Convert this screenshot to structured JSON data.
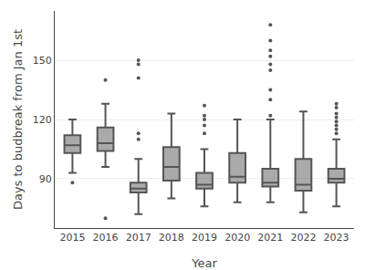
{
  "chart_data": {
    "type": "box",
    "xlabel": "Year",
    "ylabel": "Days to budbreak from Jan 1st",
    "categories": [
      "2015",
      "2016",
      "2017",
      "2018",
      "2019",
      "2020",
      "2021",
      "2022",
      "2023"
    ],
    "boxes": [
      {
        "whislo": 93,
        "q1": 103,
        "med": 107,
        "q3": 112,
        "whishi": 120,
        "fliers": [
          88
        ]
      },
      {
        "whislo": 96,
        "q1": 104,
        "med": 108,
        "q3": 116,
        "whishi": 128,
        "fliers": [
          140,
          70
        ]
      },
      {
        "whislo": 72,
        "q1": 83,
        "med": 85,
        "q3": 88,
        "whishi": 100,
        "fliers": [
          110,
          113,
          148,
          150,
          141
        ]
      },
      {
        "whislo": 80,
        "q1": 89,
        "med": 96,
        "q3": 106,
        "whishi": 123,
        "fliers": []
      },
      {
        "whislo": 76,
        "q1": 85,
        "med": 87,
        "q3": 93,
        "whishi": 105,
        "fliers": [
          113,
          117,
          120,
          122,
          127
        ]
      },
      {
        "whislo": 78,
        "q1": 88,
        "med": 91,
        "q3": 103,
        "whishi": 120,
        "fliers": []
      },
      {
        "whislo": 78,
        "q1": 86,
        "med": 88,
        "q3": 95,
        "whishi": 120,
        "fliers": [
          122,
          130,
          135,
          145,
          148,
          152,
          155,
          160,
          168
        ]
      },
      {
        "whislo": 73,
        "q1": 84,
        "med": 87,
        "q3": 100,
        "whishi": 124,
        "fliers": []
      },
      {
        "whislo": 76,
        "q1": 88,
        "med": 90,
        "q3": 95,
        "whishi": 110,
        "fliers": [
          113,
          115,
          117,
          119,
          121,
          123,
          126,
          128
        ]
      }
    ],
    "color": "#555555",
    "ylim": [
      65,
      175
    ],
    "yticks": [
      90,
      120,
      150
    ],
    "grid": true
  }
}
